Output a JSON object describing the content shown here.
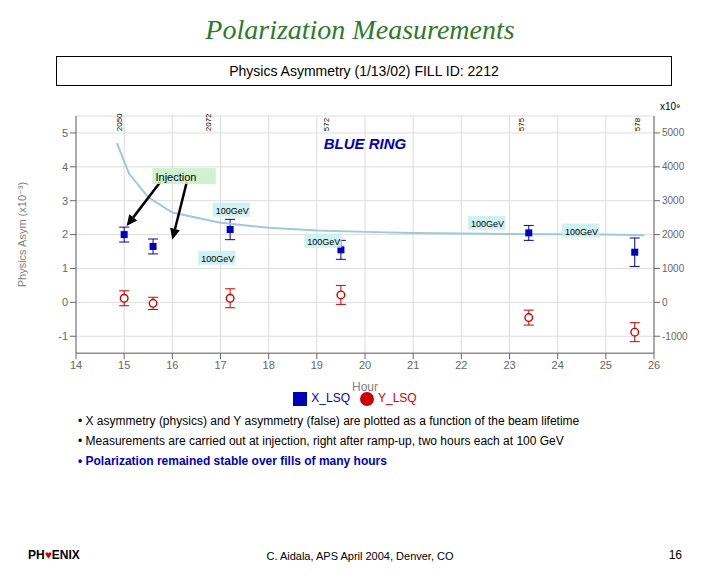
{
  "chart_data": {
    "type": "scatter",
    "title": "Polarization Measurements",
    "title_color": "#2d7a2d",
    "subtitle": "Physics Asymmetry (1/13/02) FILL ID: 2212",
    "xlabel": "Hour",
    "ylabel": "Physics Asym (x10⁻³)",
    "xlim": [
      14,
      26
    ],
    "ylim": [
      -1.5,
      5.5
    ],
    "xticks": [
      14,
      15,
      16,
      17,
      18,
      19,
      20,
      21,
      22,
      23,
      24,
      25,
      26
    ],
    "yticks": [
      -1,
      0,
      1,
      2,
      3,
      4,
      5
    ],
    "y2lim": [
      -1.5,
      5.5
    ],
    "y2ticks": [
      {
        "value": -1.0,
        "label": "-1000"
      },
      {
        "value": 0.0,
        "label": "0"
      },
      {
        "value": 1.0,
        "label": "1000"
      },
      {
        "value": 2.0,
        "label": "2000"
      },
      {
        "value": 3.0,
        "label": "3000"
      },
      {
        "value": 4.0,
        "label": "4000"
      },
      {
        "value": 5.0,
        "label": "5000"
      }
    ],
    "y2label": "x10⁹",
    "grid": true,
    "legend": "bottom",
    "series": [
      {
        "name": "X_LSQ",
        "type": "scatter",
        "marker": "square",
        "color": "#0000bb",
        "x": [
          15.0,
          15.6,
          17.2,
          19.5,
          23.4,
          25.6
        ],
        "values": [
          2.0,
          1.65,
          2.15,
          1.55,
          2.05,
          1.48
        ],
        "errors": [
          0.22,
          0.22,
          0.3,
          0.28,
          0.22,
          0.42
        ]
      },
      {
        "name": "Y_LSQ",
        "type": "scatter",
        "marker": "circle",
        "color": "#cc0000",
        "x": [
          15.0,
          15.6,
          17.2,
          19.5,
          23.4,
          25.6
        ],
        "values": [
          0.12,
          -0.03,
          0.12,
          0.22,
          -0.45,
          -0.88
        ],
        "errors": [
          0.22,
          0.18,
          0.28,
          0.28,
          0.22,
          0.28
        ]
      },
      {
        "type": "line",
        "color": "#a0c8d8",
        "x": [
          14.85,
          15.1,
          15.5,
          16.0,
          17.0,
          18.0,
          19.0,
          20.0,
          21.0,
          22.0,
          23.0,
          24.0,
          25.0,
          25.8
        ],
        "values": [
          4.7,
          3.8,
          3.1,
          2.65,
          2.35,
          2.2,
          2.12,
          2.08,
          2.05,
          2.03,
          2.02,
          2.01,
          2.0,
          1.98
        ]
      }
    ],
    "annotations": [
      {
        "text": "BLUE RING",
        "color": "#0000bb"
      },
      {
        "text": "2050",
        "x": 14.9,
        "y": 5.05
      },
      {
        "text": "2072",
        "x": 16.75,
        "y": 5.05
      },
      {
        "text": "572",
        "x": 19.2,
        "y": 5.05
      },
      {
        "text": "575",
        "x": 23.25,
        "y": 5.05
      },
      {
        "text": "578",
        "x": 25.65,
        "y": 5.05
      },
      {
        "text": "100GeV",
        "x": 16.9,
        "y": 2.62,
        "color": "#c8eeee"
      },
      {
        "text": "100GeV",
        "x": 16.6,
        "y": 1.2,
        "color": "#c8eeee"
      },
      {
        "text": "100GeV",
        "x": 18.8,
        "y": 1.7,
        "color": "#c8eeee"
      },
      {
        "text": "100GeV",
        "x": 22.2,
        "y": 2.23,
        "color": "#c8eeee"
      },
      {
        "text": "100GeV",
        "x": 24.15,
        "y": 2.0,
        "color": "#c8eeee"
      },
      {
        "text": "Injection",
        "x": 15.65,
        "y": 3.58,
        "color": "#c8eec8"
      }
    ],
    "arrows": [
      {
        "from": [
          15.75,
          3.55
        ],
        "to": [
          15.05,
          2.25
        ]
      },
      {
        "from": [
          16.3,
          3.55
        ],
        "to": [
          16.0,
          1.85
        ]
      }
    ],
    "bullets": [
      {
        "text": "• X asymmetry (physics) and Y asymmetry (false) are plotted as a function of the beam lifetime"
      },
      {
        "text": "• Measurements are carried out at injection, right after ramp-up, two hours each at 100 GeV"
      },
      {
        "text": "• Polarization remained stable over fills of many hours",
        "color": "#0000bb"
      }
    ],
    "footer": [
      "C. Aidala, APS April 2004, Denver, CO",
      "16"
    ],
    "logo": {
      "text": "PH♥ENIX",
      "color": "#cc0000"
    }
  }
}
